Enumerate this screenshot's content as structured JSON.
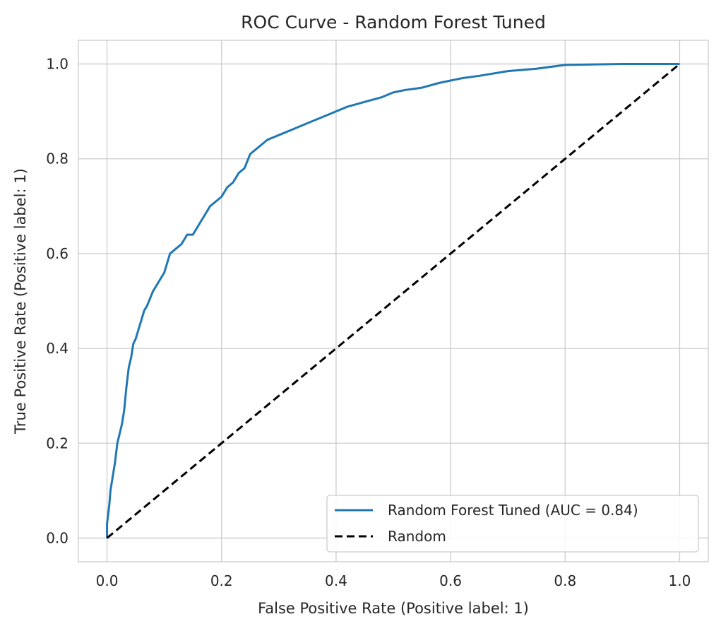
{
  "chart_data": {
    "type": "line",
    "title": "ROC Curve - Random Forest Tuned",
    "xlabel": "False Positive Rate (Positive label: 1)",
    "ylabel": "True Positive Rate (Positive label: 1)",
    "xlim": [
      -0.05,
      1.05
    ],
    "ylim": [
      -0.05,
      1.05
    ],
    "xticks": [
      "0.0",
      "0.2",
      "0.4",
      "0.6",
      "0.8",
      "1.0"
    ],
    "yticks": [
      "0.0",
      "0.2",
      "0.4",
      "0.6",
      "0.8",
      "1.0"
    ],
    "grid": true,
    "legend_position": "lower-right",
    "series": [
      {
        "name": "Random Forest Tuned (AUC = 0.84)",
        "color": "#1f77b4",
        "style": "solid",
        "x": [
          0.0,
          0.0,
          0.004,
          0.006,
          0.01,
          0.014,
          0.018,
          0.022,
          0.026,
          0.03,
          0.034,
          0.038,
          0.042,
          0.046,
          0.05,
          0.055,
          0.06,
          0.065,
          0.07,
          0.08,
          0.09,
          0.1,
          0.11,
          0.12,
          0.13,
          0.14,
          0.15,
          0.16,
          0.17,
          0.18,
          0.19,
          0.2,
          0.21,
          0.22,
          0.23,
          0.24,
          0.25,
          0.26,
          0.27,
          0.28,
          0.3,
          0.32,
          0.34,
          0.36,
          0.38,
          0.4,
          0.42,
          0.45,
          0.48,
          0.5,
          0.52,
          0.55,
          0.58,
          0.6,
          0.62,
          0.65,
          0.7,
          0.75,
          0.8,
          0.9,
          1.0
        ],
        "y": [
          0.0,
          0.03,
          0.07,
          0.1,
          0.13,
          0.16,
          0.2,
          0.22,
          0.24,
          0.27,
          0.32,
          0.36,
          0.38,
          0.41,
          0.42,
          0.44,
          0.46,
          0.48,
          0.49,
          0.52,
          0.54,
          0.56,
          0.6,
          0.61,
          0.62,
          0.64,
          0.64,
          0.66,
          0.68,
          0.7,
          0.71,
          0.72,
          0.74,
          0.75,
          0.77,
          0.78,
          0.81,
          0.82,
          0.83,
          0.84,
          0.85,
          0.86,
          0.87,
          0.88,
          0.89,
          0.9,
          0.91,
          0.92,
          0.93,
          0.94,
          0.945,
          0.95,
          0.96,
          0.965,
          0.97,
          0.975,
          0.985,
          0.99,
          0.998,
          1.0,
          1.0
        ]
      },
      {
        "name": "Random",
        "color": "#000000",
        "style": "dashed",
        "x": [
          0.0,
          1.0
        ],
        "y": [
          0.0,
          1.0
        ]
      }
    ]
  }
}
